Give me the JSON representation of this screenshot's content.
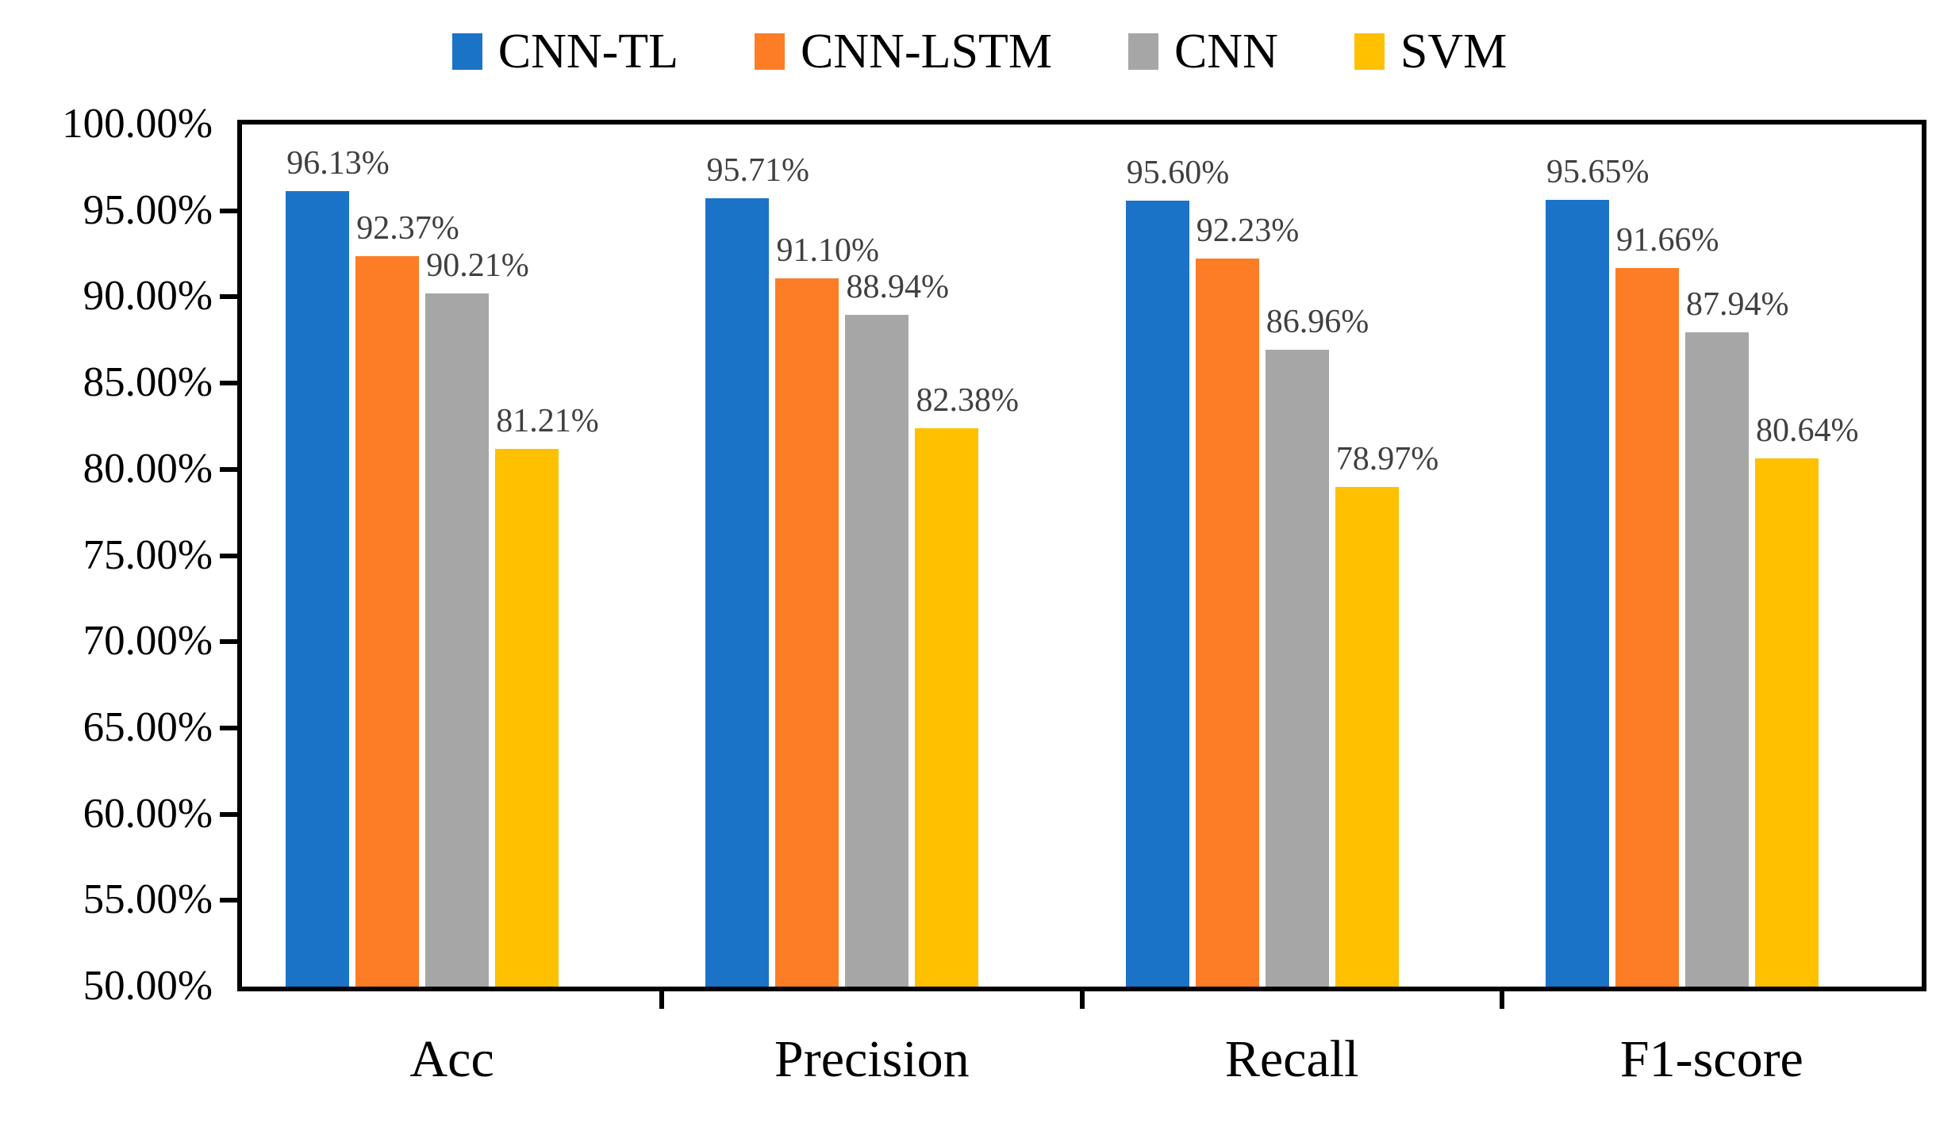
{
  "chart_data": {
    "type": "bar",
    "title": "",
    "categories": [
      "Acc",
      "Precision",
      "Recall",
      "F1-score"
    ],
    "series": [
      {
        "name": "CNN-TL",
        "color": "#1B73C8",
        "values": [
          96.13,
          95.71,
          95.6,
          95.65
        ],
        "labels": [
          "96.13%",
          "95.71%",
          "95.60%",
          "95.65%"
        ]
      },
      {
        "name": "CNN-LSTM",
        "color": "#FC7D26",
        "values": [
          92.37,
          91.1,
          92.23,
          91.66
        ],
        "labels": [
          "92.37%",
          "91.10%",
          "92.23%",
          "91.66%"
        ]
      },
      {
        "name": "CNN",
        "color": "#A6A6A6",
        "values": [
          90.21,
          88.94,
          86.96,
          87.94
        ],
        "labels": [
          "90.21%",
          "88.94%",
          "86.96%",
          "87.94%"
        ]
      },
      {
        "name": "SVM",
        "color": "#FFC000",
        "values": [
          81.21,
          82.38,
          78.97,
          80.64
        ],
        "labels": [
          "81.21%",
          "82.38%",
          "78.97%",
          "80.64%"
        ]
      }
    ],
    "y_axis": {
      "min": 50,
      "max": 100,
      "tick_step": 5,
      "tick_labels": [
        "100.00%",
        "95.00%",
        "90.00%",
        "85.00%",
        "80.00%",
        "75.00%",
        "70.00%",
        "65.00%",
        "60.00%",
        "55.00%",
        "50.00%"
      ]
    },
    "xlabel": "",
    "ylabel": "",
    "legend_position": "top",
    "grid": false,
    "colors": {
      "axis": "#000000",
      "data_label": "#404040",
      "background": "#FFFFFF"
    }
  }
}
